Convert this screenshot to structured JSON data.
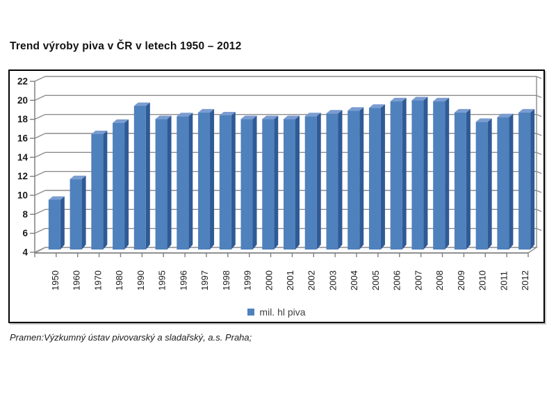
{
  "header": {
    "title": "Trend výroby piva v ČR v letech 1950 – 2012"
  },
  "footer": {
    "source": "Pramen:Výzkumný ústav pivovarský a sladařský, a.s. Praha;"
  },
  "legend": {
    "swatch_icon": "blue-square",
    "label": "mil. hl piva"
  },
  "chart_data": {
    "type": "bar",
    "style": "3d-column",
    "title": "Trend výroby piva v ČR v letech 1950 – 2012",
    "series_name": "mil. hl piva",
    "categories": [
      "1950",
      "1960",
      "1970",
      "1980",
      "1990",
      "1995",
      "1996",
      "1997",
      "1998",
      "1999",
      "2000",
      "2001",
      "2002",
      "2003",
      "2004",
      "2005",
      "2006",
      "2007",
      "2008",
      "2009",
      "2010",
      "2011",
      "2012"
    ],
    "values": [
      9.3,
      11.5,
      16.3,
      17.5,
      19.3,
      17.9,
      18.2,
      18.6,
      18.3,
      17.9,
      17.9,
      17.9,
      18.2,
      18.5,
      18.8,
      19.1,
      19.8,
      19.9,
      19.8,
      18.6,
      17.6,
      18.1,
      18.6
    ],
    "xlabel": "",
    "ylabel": "",
    "ylim": [
      4,
      22
    ],
    "yticks": [
      4,
      6,
      8,
      10,
      12,
      14,
      16,
      18,
      20,
      22
    ],
    "grid": true,
    "legend_position": "bottom",
    "colors": {
      "bar_front": "#4f81bd",
      "bar_top": "#7a9cd0",
      "bar_side": "#2f5a96",
      "gridline": "#8c8c8c",
      "axis": "#7f7f7f",
      "floor_fill": "#fafafa",
      "frame_border": "#000000",
      "label_text": "#1a1a1a"
    }
  }
}
